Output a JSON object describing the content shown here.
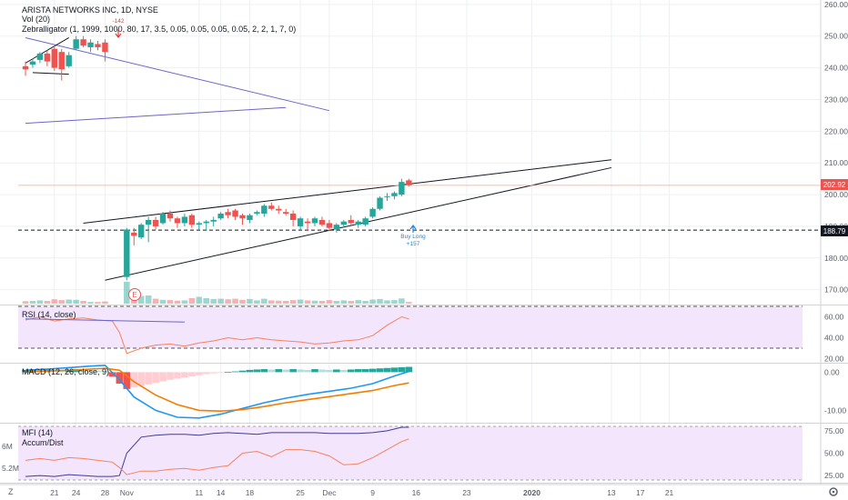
{
  "symbol": {
    "title": "ARISTA NETWORKS INC, 1D, NYSE",
    "volume_label": "Vol (20)",
    "zebra_label": "Zebralligator (1, 1999, 1000, 80, 17, 3.5, 0.05, 0.05, 0.05, 0.05, 2, 2, 1, 7, 0)"
  },
  "panes": {
    "rsi_label": "RSI (14, close)",
    "macd_label": "MACD (12, 26, close, 9)",
    "mfi_label": "MFI (14)",
    "accdist_label": "Accum/Dist"
  },
  "price_tags": {
    "last": "202.92",
    "support": "188.79"
  },
  "earnings_marker": "E",
  "signals": [
    {
      "text": "-142",
      "color": "#e53935"
    },
    {
      "text": "Buy Long",
      "color": "#1e88e5"
    },
    {
      "text": "+157",
      "color": "#1e88e5"
    }
  ],
  "bottom_left_icon": "Z",
  "settings_icon": "gear-icon",
  "colors": {
    "up": "#26a69a",
    "down": "#ef5350",
    "grid": "#eef0f3",
    "trend": "#6b66c9",
    "rsi_line": "#f7825d",
    "macd_line": "#2196f3",
    "signal_line": "#f57c00",
    "pane_fill": "#f3e5fb"
  },
  "chart_data": [
    {
      "type": "candlestick",
      "title": "ARISTA NETWORKS INC, 1D, NYSE",
      "x_ticks": [
        "21",
        "24",
        "28",
        "Nov",
        "11",
        "14",
        "18",
        "25",
        "Dec",
        "9",
        "16",
        "23",
        "2020",
        "13",
        "17",
        "21"
      ],
      "x_tick_pos": [
        4,
        7,
        11,
        14,
        24,
        27,
        31,
        38,
        42,
        48,
        54,
        61,
        70,
        81,
        85,
        89
      ],
      "y_ticks": [
        170,
        180,
        190,
        200,
        210,
        220,
        230,
        240,
        250,
        260
      ],
      "y_tick_labels": [
        "170.00",
        "180.00",
        "190.00",
        "200.00",
        "210.00",
        "220.00",
        "230.00",
        "240.00",
        "250.00",
        "260.00"
      ],
      "ylim": [
        165.6,
        261.4
      ],
      "candles": [
        {
          "t": 0,
          "o": 240.5,
          "h": 242.0,
          "l": 237.5,
          "c": 239.5
        },
        {
          "t": 1,
          "o": 241.0,
          "h": 243.0,
          "l": 240.0,
          "c": 242.0
        },
        {
          "t": 2,
          "o": 242.5,
          "h": 245.0,
          "l": 241.5,
          "c": 244.5
        },
        {
          "t": 3,
          "o": 244.5,
          "h": 245.5,
          "l": 240.5,
          "c": 242.0
        },
        {
          "t": 4,
          "o": 246.0,
          "h": 247.0,
          "l": 239.0,
          "c": 240.0
        },
        {
          "t": 5,
          "o": 245.0,
          "h": 246.0,
          "l": 236.0,
          "c": 239.5
        },
        {
          "t": 6,
          "o": 240.5,
          "h": 245.0,
          "l": 240.0,
          "c": 244.0
        },
        {
          "t": 7,
          "o": 246.0,
          "h": 250.0,
          "l": 245.5,
          "c": 249.0
        },
        {
          "t": 8,
          "o": 249.0,
          "h": 250.0,
          "l": 246.5,
          "c": 247.0
        },
        {
          "t": 9,
          "o": 246.5,
          "h": 249.0,
          "l": 245.0,
          "c": 248.0
        },
        {
          "t": 10,
          "o": 247.5,
          "h": 248.5,
          "l": 245.5,
          "c": 246.5
        },
        {
          "t": 11,
          "o": 248.0,
          "h": 249.0,
          "l": 242.0,
          "c": 245.0
        },
        {
          "t": 14,
          "o": 174.0,
          "h": 189.5,
          "l": 173.0,
          "c": 189.0
        },
        {
          "t": 15,
          "o": 188.0,
          "h": 189.5,
          "l": 184.0,
          "c": 187.0
        },
        {
          "t": 16,
          "o": 186.5,
          "h": 191.0,
          "l": 186.0,
          "c": 190.5
        },
        {
          "t": 17,
          "o": 190.5,
          "h": 193.0,
          "l": 185.0,
          "c": 192.0
        },
        {
          "t": 18,
          "o": 192.0,
          "h": 193.0,
          "l": 189.0,
          "c": 190.0
        },
        {
          "t": 19,
          "o": 191.0,
          "h": 194.5,
          "l": 190.5,
          "c": 194.0
        },
        {
          "t": 20,
          "o": 194.0,
          "h": 195.0,
          "l": 191.5,
          "c": 192.5
        },
        {
          "t": 21,
          "o": 192.5,
          "h": 193.0,
          "l": 189.5,
          "c": 191.0
        },
        {
          "t": 22,
          "o": 191.0,
          "h": 194.0,
          "l": 190.0,
          "c": 193.0
        },
        {
          "t": 23,
          "o": 193.5,
          "h": 194.0,
          "l": 189.5,
          "c": 190.5
        },
        {
          "t": 24,
          "o": 190.5,
          "h": 191.5,
          "l": 189.0,
          "c": 191.0
        },
        {
          "t": 25,
          "o": 191.0,
          "h": 192.0,
          "l": 188.5,
          "c": 191.5
        },
        {
          "t": 26,
          "o": 191.5,
          "h": 193.0,
          "l": 190.0,
          "c": 192.0
        },
        {
          "t": 27,
          "o": 192.5,
          "h": 194.5,
          "l": 192.0,
          "c": 194.0
        },
        {
          "t": 28,
          "o": 194.5,
          "h": 195.5,
          "l": 192.5,
          "c": 193.5
        },
        {
          "t": 29,
          "o": 195.0,
          "h": 195.5,
          "l": 192.0,
          "c": 193.0
        },
        {
          "t": 30,
          "o": 193.5,
          "h": 194.0,
          "l": 190.5,
          "c": 192.5
        },
        {
          "t": 31,
          "o": 192.0,
          "h": 194.0,
          "l": 191.0,
          "c": 193.5
        },
        {
          "t": 32,
          "o": 194.0,
          "h": 195.0,
          "l": 193.5,
          "c": 194.5
        },
        {
          "t": 33,
          "o": 194.0,
          "h": 197.0,
          "l": 193.0,
          "c": 196.5
        },
        {
          "t": 34,
          "o": 196.5,
          "h": 197.5,
          "l": 195.0,
          "c": 195.5
        },
        {
          "t": 35,
          "o": 195.5,
          "h": 196.5,
          "l": 194.0,
          "c": 195.0
        },
        {
          "t": 36,
          "o": 194.5,
          "h": 195.5,
          "l": 193.5,
          "c": 194.0
        },
        {
          "t": 37,
          "o": 194.0,
          "h": 195.0,
          "l": 190.0,
          "c": 192.0
        },
        {
          "t": 38,
          "o": 190.0,
          "h": 193.0,
          "l": 189.0,
          "c": 192.5
        },
        {
          "t": 39,
          "o": 191.5,
          "h": 192.5,
          "l": 188.5,
          "c": 191.0
        },
        {
          "t": 40,
          "o": 191.0,
          "h": 193.0,
          "l": 190.0,
          "c": 192.5
        },
        {
          "t": 41,
          "o": 192.0,
          "h": 193.0,
          "l": 190.0,
          "c": 190.5
        },
        {
          "t": 42,
          "o": 191.0,
          "h": 192.0,
          "l": 188.5,
          "c": 189.5
        },
        {
          "t": 43,
          "o": 189.0,
          "h": 191.0,
          "l": 188.0,
          "c": 190.5
        },
        {
          "t": 44,
          "o": 190.5,
          "h": 192.0,
          "l": 189.5,
          "c": 191.5
        },
        {
          "t": 45,
          "o": 192.0,
          "h": 193.5,
          "l": 190.5,
          "c": 191.0
        },
        {
          "t": 46,
          "o": 190.5,
          "h": 192.0,
          "l": 189.5,
          "c": 191.5
        },
        {
          "t": 47,
          "o": 190.5,
          "h": 193.0,
          "l": 190.0,
          "c": 192.5
        },
        {
          "t": 48,
          "o": 193.0,
          "h": 196.0,
          "l": 192.5,
          "c": 195.5
        },
        {
          "t": 49,
          "o": 195.5,
          "h": 199.5,
          "l": 195.0,
          "c": 199.0
        },
        {
          "t": 50,
          "o": 199.5,
          "h": 200.5,
          "l": 198.0,
          "c": 199.5
        },
        {
          "t": 51,
          "o": 199.5,
          "h": 201.0,
          "l": 198.5,
          "c": 200.5
        },
        {
          "t": 52,
          "o": 200.0,
          "h": 205.0,
          "l": 199.5,
          "c": 204.0
        },
        {
          "t": 53,
          "o": 204.5,
          "h": 205.0,
          "l": 202.5,
          "c": 203.0
        }
      ],
      "volume": [
        {
          "t": 0,
          "v": 0.9,
          "up": false
        },
        {
          "t": 1,
          "v": 1.0,
          "up": true
        },
        {
          "t": 2,
          "v": 1.2,
          "up": true
        },
        {
          "t": 3,
          "v": 1.0,
          "up": false
        },
        {
          "t": 4,
          "v": 1.6,
          "up": false
        },
        {
          "t": 5,
          "v": 1.3,
          "up": false
        },
        {
          "t": 6,
          "v": 1.5,
          "up": true
        },
        {
          "t": 7,
          "v": 1.4,
          "up": true
        },
        {
          "t": 8,
          "v": 1.0,
          "up": false
        },
        {
          "t": 9,
          "v": 0.6,
          "up": true
        },
        {
          "t": 10,
          "v": 0.6,
          "up": false
        },
        {
          "t": 11,
          "v": 0.8,
          "up": false
        },
        {
          "t": 14,
          "v": 8.0,
          "up": true
        },
        {
          "t": 15,
          "v": 4.5,
          "up": false
        },
        {
          "t": 16,
          "v": 2.8,
          "up": true
        },
        {
          "t": 17,
          "v": 3.0,
          "up": true
        },
        {
          "t": 18,
          "v": 1.8,
          "up": false
        },
        {
          "t": 19,
          "v": 1.4,
          "up": true
        },
        {
          "t": 20,
          "v": 1.3,
          "up": false
        },
        {
          "t": 21,
          "v": 1.1,
          "up": false
        },
        {
          "t": 22,
          "v": 1.2,
          "up": true
        },
        {
          "t": 23,
          "v": 2.0,
          "up": false
        },
        {
          "t": 24,
          "v": 2.5,
          "up": true
        },
        {
          "t": 25,
          "v": 2.0,
          "up": true
        },
        {
          "t": 26,
          "v": 1.7,
          "up": true
        },
        {
          "t": 27,
          "v": 1.8,
          "up": true
        },
        {
          "t": 28,
          "v": 1.6,
          "up": false
        },
        {
          "t": 29,
          "v": 1.8,
          "up": false
        },
        {
          "t": 30,
          "v": 1.4,
          "up": false
        },
        {
          "t": 31,
          "v": 1.7,
          "up": true
        },
        {
          "t": 32,
          "v": 1.2,
          "up": true
        },
        {
          "t": 33,
          "v": 1.8,
          "up": true
        },
        {
          "t": 34,
          "v": 1.2,
          "up": false
        },
        {
          "t": 35,
          "v": 1.1,
          "up": false
        },
        {
          "t": 36,
          "v": 1.0,
          "up": false
        },
        {
          "t": 37,
          "v": 1.3,
          "up": false
        },
        {
          "t": 38,
          "v": 1.5,
          "up": true
        },
        {
          "t": 39,
          "v": 1.2,
          "up": false
        },
        {
          "t": 40,
          "v": 1.1,
          "up": true
        },
        {
          "t": 41,
          "v": 1.0,
          "up": false
        },
        {
          "t": 42,
          "v": 1.3,
          "up": false
        },
        {
          "t": 43,
          "v": 1.0,
          "up": true
        },
        {
          "t": 44,
          "v": 1.2,
          "up": true
        },
        {
          "t": 45,
          "v": 1.0,
          "up": false
        },
        {
          "t": 46,
          "v": 1.3,
          "up": true
        },
        {
          "t": 47,
          "v": 1.0,
          "up": true
        },
        {
          "t": 48,
          "v": 1.5,
          "up": true
        },
        {
          "t": 49,
          "v": 1.7,
          "up": true
        },
        {
          "t": 50,
          "v": 1.2,
          "up": true
        },
        {
          "t": 51,
          "v": 1.3,
          "up": true
        },
        {
          "t": 52,
          "v": 1.9,
          "up": true
        },
        {
          "t": 53,
          "v": 0.6,
          "up": false
        }
      ],
      "trendlines": [
        {
          "t1": 0,
          "p1": 249.5,
          "t2": 42,
          "p2": 226.5,
          "color": "#6b66c9"
        },
        {
          "t1": 0,
          "p1": 222.5,
          "t2": 36,
          "p2": 227.5,
          "color": "#6b66c9"
        },
        {
          "t1": 0,
          "p1": 241.5,
          "t2": 6,
          "p2": 249.5,
          "color": "#131722"
        },
        {
          "t1": 1,
          "p1": 238.5,
          "t2": 6,
          "p2": 238.0,
          "color": "#131722"
        },
        {
          "t1": 8,
          "p1": 191.0,
          "t2": 81,
          "p2": 211.0,
          "color": "#131722"
        },
        {
          "t1": 11,
          "p1": 173.0,
          "t2": 81,
          "p2": 208.5,
          "color": "#131722"
        }
      ],
      "hlines": [
        {
          "price": 188.79,
          "style": "dashed"
        },
        {
          "price": 202.92,
          "style": "solid"
        }
      ]
    },
    {
      "type": "line",
      "title": "RSI (14, close)",
      "y_ticks": [
        20,
        40,
        60
      ],
      "y_tick_labels": [
        "20.00",
        "40.00",
        "60.00"
      ],
      "ylim": [
        17,
        70
      ],
      "bands": [
        30,
        70
      ],
      "x": [
        0,
        2,
        4,
        6,
        8,
        10,
        12,
        13,
        14,
        16,
        18,
        20,
        22,
        24,
        26,
        28,
        30,
        32,
        34,
        36,
        38,
        40,
        42,
        44,
        46,
        48,
        50,
        52,
        53
      ],
      "values": [
        57,
        60,
        56,
        58,
        59,
        57,
        56,
        45,
        25,
        30,
        33,
        34,
        32,
        35,
        37,
        40,
        38,
        40,
        38,
        37,
        36,
        34,
        35,
        37,
        38,
        42,
        52,
        60,
        58
      ],
      "reference_line": {
        "t1": 0,
        "v1": 58,
        "t2": 22,
        "v2": 55
      }
    },
    {
      "type": "bar+line",
      "title": "MACD (12, 26, close, 9)",
      "y_ticks": [
        -10,
        0
      ],
      "y_tick_labels": [
        "-10.00",
        "0.00"
      ],
      "ylim": [
        -13,
        2
      ],
      "histogram_x": [
        0,
        1,
        2,
        3,
        4,
        5,
        6,
        7,
        8,
        9,
        10,
        11,
        12,
        13,
        14,
        15,
        16,
        17,
        18,
        19,
        20,
        21,
        22,
        23,
        24,
        25,
        26,
        27,
        28,
        29,
        30,
        31,
        32,
        33,
        34,
        35,
        36,
        37,
        38,
        39,
        40,
        41,
        42,
        43,
        44,
        45,
        46,
        47,
        48,
        49,
        50,
        51,
        52,
        53
      ],
      "histogram": [
        0.6,
        0.8,
        0.7,
        0.8,
        0.6,
        0.5,
        0.6,
        0.8,
        0.6,
        0.5,
        0.4,
        0.3,
        -1.2,
        -3.0,
        -4.4,
        -4.0,
        -3.6,
        -3.2,
        -2.8,
        -2.4,
        -2.0,
        -1.7,
        -1.4,
        -1.1,
        -0.8,
        -0.5,
        -0.3,
        -0.1,
        0.1,
        0.2,
        0.4,
        0.6,
        0.7,
        0.8,
        0.7,
        0.8,
        0.7,
        0.8,
        0.7,
        0.6,
        0.8,
        0.7,
        0.6,
        0.7,
        0.6,
        0.7,
        0.8,
        0.8,
        0.9,
        1.0,
        1.1,
        1.2,
        1.3,
        1.4
      ],
      "macd_x": [
        0,
        3,
        6,
        9,
        11,
        13,
        15,
        18,
        21,
        24,
        27,
        30,
        33,
        36,
        39,
        42,
        45,
        48,
        51,
        53
      ],
      "macd": [
        0.5,
        0.8,
        1.2,
        1.6,
        1.8,
        -2.0,
        -6.5,
        -10.0,
        -11.8,
        -12.0,
        -11.0,
        -9.5,
        -8.0,
        -6.8,
        -5.8,
        -5.0,
        -4.2,
        -3.0,
        -1.0,
        0.2
      ],
      "signal_x": [
        0,
        3,
        6,
        9,
        11,
        13,
        15,
        18,
        21,
        24,
        27,
        30,
        33,
        36,
        39,
        42,
        45,
        48,
        51,
        53
      ],
      "signal": [
        0.0,
        0.3,
        0.5,
        0.8,
        1.0,
        0.5,
        -2.5,
        -6.0,
        -8.5,
        -10.0,
        -10.2,
        -9.8,
        -9.0,
        -8.0,
        -7.2,
        -6.4,
        -5.6,
        -4.8,
        -3.5,
        -2.8
      ]
    },
    {
      "type": "line",
      "title": "MFI (14)",
      "secondary_title": "Accum/Dist",
      "y_ticks": [
        25,
        50,
        75
      ],
      "y_tick_labels": [
        "25.00",
        "50.00",
        "75.00"
      ],
      "ylim": [
        18,
        82
      ],
      "bands": [
        20,
        80
      ],
      "left_ticks": [
        "6M",
        "5.2M"
      ],
      "mfi_x": [
        0,
        2,
        4,
        6,
        8,
        10,
        12,
        13,
        14,
        16,
        18,
        20,
        22,
        24,
        26,
        28,
        30,
        32,
        34,
        36,
        38,
        40,
        42,
        44,
        46,
        48,
        50,
        52,
        53
      ],
      "mfi": [
        24,
        25,
        24,
        26,
        25,
        24,
        24,
        25,
        50,
        68,
        70,
        71,
        71,
        70,
        72,
        73,
        72,
        71,
        73,
        73,
        73,
        73,
        72,
        72,
        72,
        73,
        75,
        79,
        79
      ],
      "ad_x": [
        0,
        2,
        4,
        6,
        8,
        10,
        12,
        13,
        14,
        16,
        18,
        20,
        22,
        24,
        26,
        28,
        30,
        32,
        34,
        36,
        38,
        40,
        42,
        44,
        46,
        48,
        50,
        52,
        53
      ],
      "ad": [
        42,
        44,
        42,
        45,
        44,
        42,
        40,
        34,
        26,
        30,
        30,
        32,
        33,
        31,
        34,
        36,
        50,
        52,
        46,
        54,
        54,
        52,
        47,
        37,
        38,
        45,
        54,
        63,
        66
      ]
    }
  ]
}
